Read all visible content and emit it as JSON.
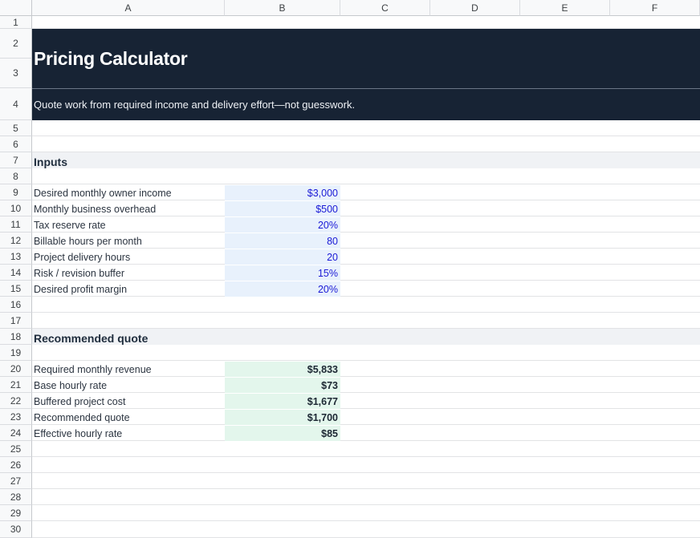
{
  "columns": [
    "A",
    "B",
    "C",
    "D",
    "E",
    "F"
  ],
  "rows": [
    "1",
    "2",
    "3",
    "4",
    "5",
    "6",
    "7",
    "8",
    "9",
    "10",
    "11",
    "12",
    "13",
    "14",
    "15",
    "16",
    "17",
    "18",
    "19",
    "20",
    "21",
    "22",
    "23",
    "24",
    "25",
    "26",
    "27",
    "28",
    "29",
    "30"
  ],
  "header": {
    "title": "Pricing Calculator",
    "subtitle": "Quote work from required income and delivery effort—not guesswork."
  },
  "inputs": {
    "heading": "Inputs",
    "items": [
      {
        "label": "Desired monthly owner income",
        "value": "$3,000"
      },
      {
        "label": "Monthly business overhead",
        "value": "$500"
      },
      {
        "label": "Tax reserve rate",
        "value": "20%"
      },
      {
        "label": "Billable hours per month",
        "value": "80"
      },
      {
        "label": "Project delivery hours",
        "value": "20"
      },
      {
        "label": "Risk / revision buffer",
        "value": "15%"
      },
      {
        "label": "Desired profit margin",
        "value": "20%"
      }
    ]
  },
  "quote": {
    "heading": "Recommended quote",
    "items": [
      {
        "label": "Required monthly revenue",
        "value": "$5,833"
      },
      {
        "label": "Base hourly rate",
        "value": "$73"
      },
      {
        "label": "Buffered project cost",
        "value": "$1,677"
      },
      {
        "label": "Recommended quote",
        "value": "$1,700"
      },
      {
        "label": "Effective hourly rate",
        "value": "$85"
      }
    ]
  },
  "colors": {
    "header_band": "#172334",
    "input_fill": "#e8f1fc",
    "input_text": "#1a1ad6",
    "output_fill": "#e3f6ec",
    "section_band": "#f0f2f5"
  }
}
